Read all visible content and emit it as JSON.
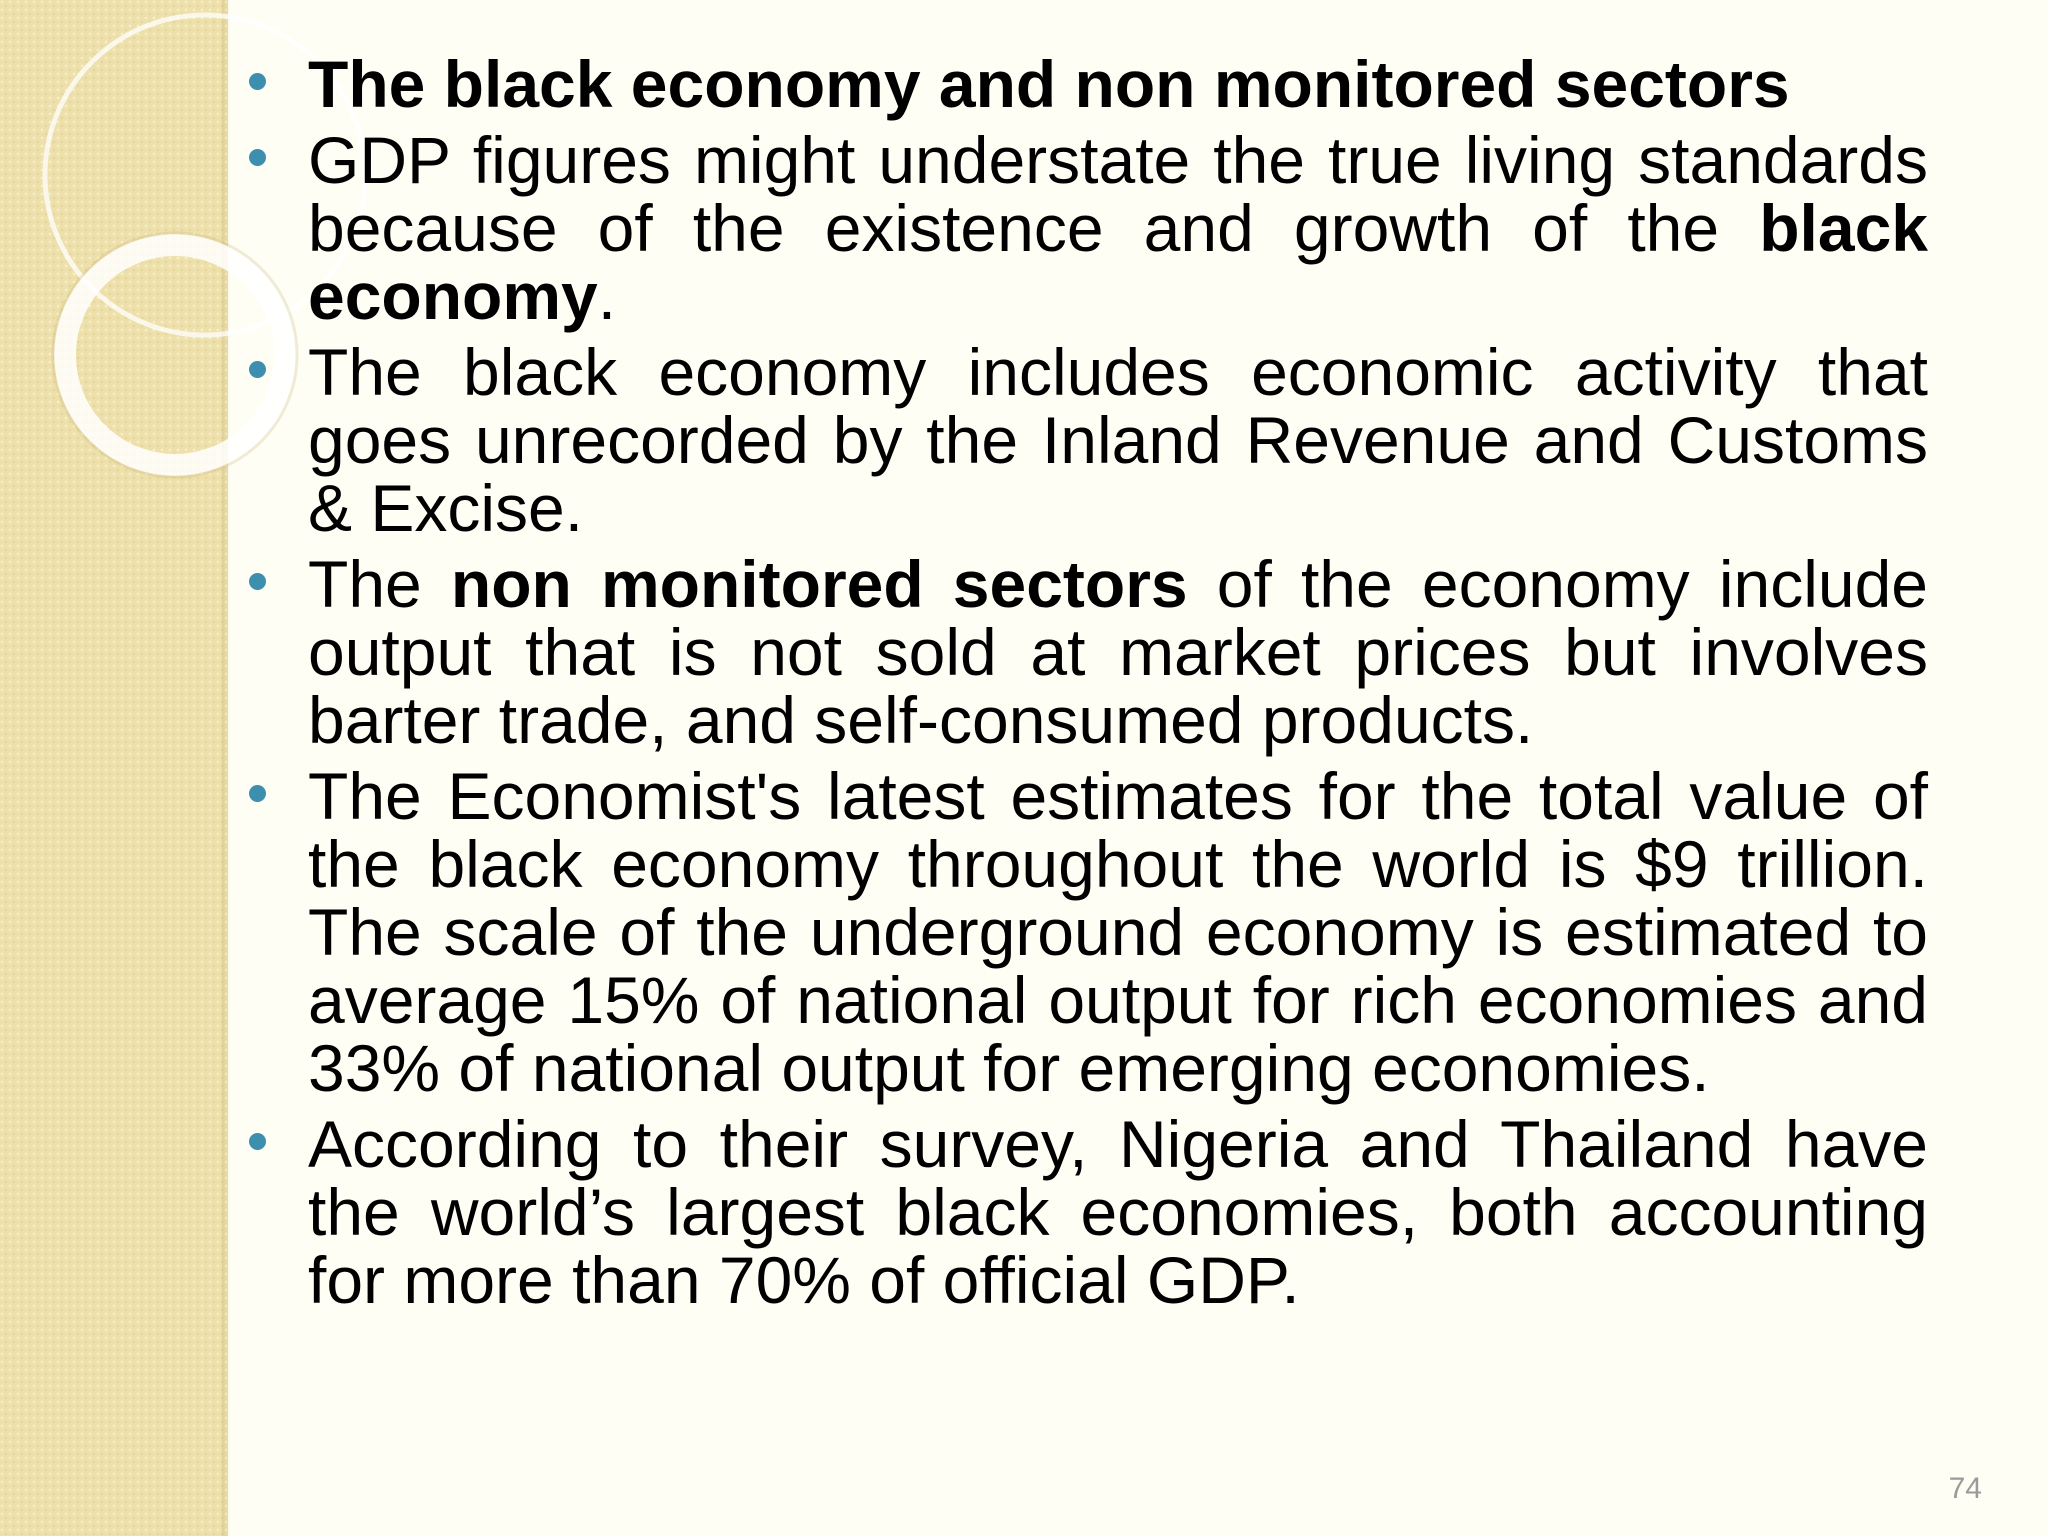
{
  "slide": {
    "number": "74",
    "bullets": [
      {
        "parts": [
          {
            "text": "The black economy and non monitored sectors",
            "bold": true
          }
        ]
      },
      {
        "parts": [
          {
            "text": "GDP figures might understate the true living standards because of the existence and growth of the ",
            "bold": false
          },
          {
            "text": "black economy",
            "bold": true
          },
          {
            "text": ".",
            "bold": false
          }
        ]
      },
      {
        "parts": [
          {
            "text": "The black economy includes economic activity that goes unrecorded by the Inland Revenue and Customs & Excise.",
            "bold": false
          }
        ]
      },
      {
        "parts": [
          {
            "text": "The ",
            "bold": false
          },
          {
            "text": "non monitored sectors",
            "bold": true
          },
          {
            "text": " of the economy include output that is not sold at market prices but involves barter trade, and self-consumed products.",
            "bold": false
          }
        ]
      },
      {
        "parts": [
          {
            "text": "The Economist's latest estimates for the total value of the black economy throughout the world is $9 trillion. The scale of the underground economy is estimated to average 15% of national output for rich economies and 33% of national output for emerging economies.",
            "bold": false
          }
        ]
      },
      {
        "parts": [
          {
            "text": "According to their survey, Nigeria and Thailand have the world’s largest black economies, both accounting for more than 70% of official GDP.",
            "bold": false
          }
        ]
      }
    ]
  },
  "colors": {
    "bullet": "#3d8fb0",
    "sidebar": "#eee0aa",
    "background": "#fefef5",
    "slide_number": "#9a9a9a"
  }
}
